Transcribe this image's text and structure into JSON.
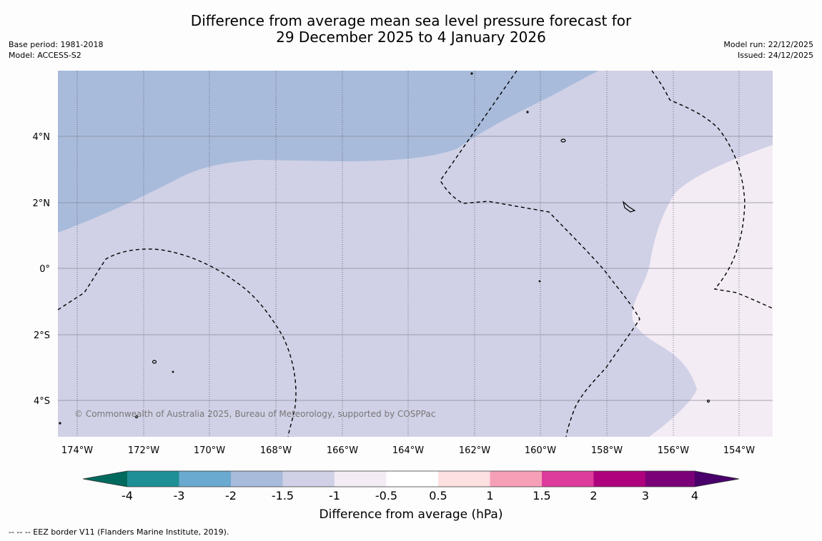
{
  "header": {
    "title_line1": "Difference from average mean sea level pressure forecast for",
    "title_line2": "29 December 2025 to 4 January 2026",
    "base_period": "Base period: 1981-2018",
    "model": "Model: ACCESS-S2",
    "model_run": "Model run: 22/12/2025",
    "issued": "Issued: 24/12/2025"
  },
  "map": {
    "lat_labels": [
      "4°N",
      "2°N",
      "0°",
      "2°S",
      "4°S"
    ],
    "lon_labels": [
      "174°W",
      "172°W",
      "170°W",
      "168°W",
      "166°W",
      "164°W",
      "162°W",
      "160°W",
      "158°W",
      "156°W",
      "154°W"
    ],
    "copyright": "© Commonwealth of Australia 2025, Bureau of Meteorology, supported by COSPPac",
    "region_colors": {
      "minus_2_to_minus_1_5": "#a8bbdb",
      "minus_1_5_to_minus_1": "#d0d1e6",
      "minus_1_to_minus_0_5": "#f4ecf5"
    }
  },
  "colorbar": {
    "title": "Difference from average (hPa)",
    "ticks": [
      "-4",
      "-3",
      "-2",
      "-1.5",
      "-1",
      "-0.5",
      "0.5",
      "1",
      "1.5",
      "2",
      "3",
      "4"
    ],
    "colors": [
      "#006a5e",
      "#1f8f96",
      "#6aa9d0",
      "#a8bbdb",
      "#d0d1e6",
      "#f4ecf5",
      "#ffffff",
      "#fde0e0",
      "#f6a0b8",
      "#dd3c9c",
      "#ad017e",
      "#7a0177",
      "#49006a"
    ]
  },
  "footer": {
    "legend": "--  --  -- EEZ border V11 (Flanders Marine Institute, 2019)."
  }
}
